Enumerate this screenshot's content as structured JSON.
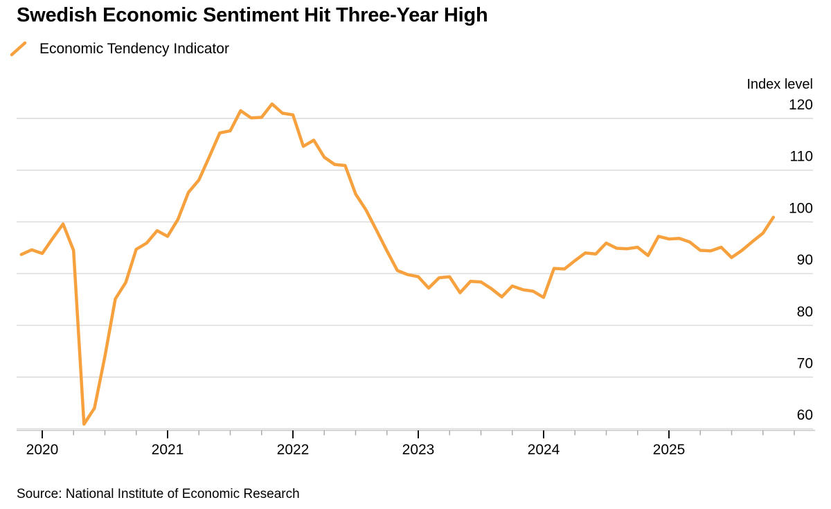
{
  "title": "Swedish Economic Sentiment Hit Three-Year High",
  "legend": {
    "label": "Economic Tendency Indicator",
    "swatch": "diagonal-line"
  },
  "source": "Source: National Institute of Economic Research",
  "colors": {
    "accent": "#F6A13E",
    "gridline": "#D9D9D9",
    "axis_line": "#C6C6C6",
    "major_tick": "#111111",
    "minor_tick": "#ABABAB",
    "text": "#000000"
  },
  "y_axis": {
    "title": "Index level",
    "ticks": [
      120,
      110,
      100,
      90,
      80,
      70,
      60
    ]
  },
  "x_axis": {
    "ticks": [
      "2020",
      "2021",
      "2022",
      "2023",
      "2024",
      "2025"
    ]
  },
  "chart_data": {
    "type": "line",
    "title": "Swedish Economic Sentiment Hit Three-Year High",
    "series_name": "Economic Tendency Indicator",
    "frequency": "monthly",
    "ylabel": "Index level",
    "ylim": [
      56,
      126
    ],
    "grid": "horizontal",
    "legend_position": "top-left",
    "x": [
      "2019-11",
      "2019-12",
      "2020-01",
      "2020-02",
      "2020-03",
      "2020-04",
      "2020-05",
      "2020-06",
      "2020-07",
      "2020-08",
      "2020-09",
      "2020-10",
      "2020-11",
      "2020-12",
      "2021-01",
      "2021-02",
      "2021-03",
      "2021-04",
      "2021-05",
      "2021-06",
      "2021-07",
      "2021-08",
      "2021-09",
      "2021-10",
      "2021-11",
      "2021-12",
      "2022-01",
      "2022-02",
      "2022-03",
      "2022-04",
      "2022-05",
      "2022-06",
      "2022-07",
      "2022-08",
      "2022-09",
      "2022-10",
      "2022-11",
      "2022-12",
      "2023-01",
      "2023-02",
      "2023-03",
      "2023-04",
      "2023-05",
      "2023-06",
      "2023-07",
      "2023-08",
      "2023-09",
      "2023-10",
      "2023-11",
      "2023-12",
      "2024-01",
      "2024-02",
      "2024-03",
      "2024-04",
      "2024-05",
      "2024-06",
      "2024-07",
      "2024-08",
      "2024-09",
      "2024-10",
      "2024-11",
      "2024-12",
      "2025-01",
      "2025-02",
      "2025-03",
      "2025-04",
      "2025-05",
      "2025-06",
      "2025-07",
      "2025-08",
      "2025-09",
      "2025-10",
      "2025-11"
    ],
    "values": [
      93.7,
      94.6,
      93.9,
      96.8,
      99.6,
      94.5,
      60.9,
      64.0,
      74.0,
      85.1,
      88.3,
      94.7,
      95.9,
      98.3,
      97.2,
      100.5,
      105.7,
      108.1,
      112.6,
      117.2,
      117.6,
      121.5,
      120.1,
      120.2,
      122.8,
      121.0,
      120.7,
      114.6,
      115.8,
      112.5,
      111.1,
      110.9,
      105.4,
      102.3,
      98.4,
      94.4,
      90.6,
      89.8,
      89.4,
      87.2,
      89.2,
      89.4,
      86.3,
      88.5,
      88.4,
      87.1,
      85.5,
      87.6,
      86.9,
      86.6,
      85.4,
      91.0,
      90.9,
      92.5,
      94.0,
      93.8,
      95.9,
      94.9,
      94.8,
      95.1,
      93.5,
      97.2,
      96.7,
      96.8,
      96.1,
      94.5,
      94.4,
      95.1,
      93.1,
      94.5,
      96.2,
      97.8,
      100.9
    ]
  }
}
